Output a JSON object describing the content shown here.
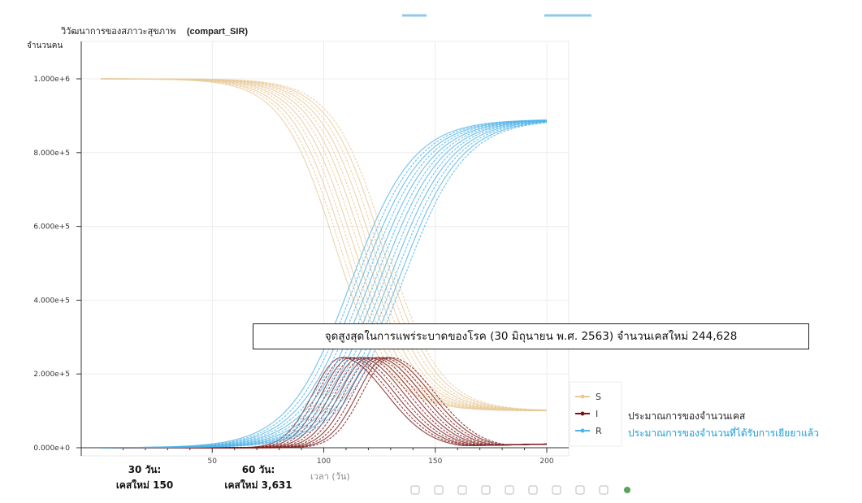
{
  "chart_data": {
    "type": "line",
    "title": "วิวัฒนาการของสภาวะสุขภาพ",
    "subtitle": "(compart_SIR)",
    "ylabel": "จำนวนคน",
    "xlabel": "เวลา (วัน)",
    "xlim": [
      0,
      210
    ],
    "ylim": [
      0,
      1000000
    ],
    "x_ticks": [
      "50",
      "100",
      "150",
      "200"
    ],
    "y_ticks": [
      "0.000e+0",
      "2.000e+5",
      "4.000e+5",
      "6.000e+5",
      "8.000e+5",
      "1.000e+6"
    ],
    "legend_position": "bottom-right",
    "grid": true,
    "series": [
      {
        "name": "S",
        "color": "#e8c99a",
        "x_start": 0,
        "x_end": 200,
        "start": 1000000,
        "end": 100000,
        "midpoint_range": [
          105,
          128
        ],
        "runs": 12
      },
      {
        "name": "I",
        "color": "#7a1414",
        "x_start": 0,
        "x_end": 200,
        "peak": 244628,
        "peak_x_range": [
          108,
          130
        ],
        "end": 10000,
        "runs": 12
      },
      {
        "name": "R",
        "color": "#4fb3e8",
        "x_start": 0,
        "x_end": 200,
        "start": 0,
        "end": 890000,
        "midpoint_range": [
          112,
          135
        ],
        "runs": 12
      }
    ]
  },
  "annotations": {
    "peak": "จุดสูงสุดในการแพร่ระบาดของโรค (30 มิถุนายน พ.ศ. 2563) จำนวนเคสใหม่ 244,628",
    "day30": {
      "line1": "30 วัน:",
      "line2": "เคสใหม่ 150"
    },
    "day60": {
      "line1": "60 วัน:",
      "line2": "เคสใหม่ 3,631"
    },
    "legend_desc_s": "ประมาณการของจำนวนเคส",
    "legend_desc_r": "ประมาณการของจำนวนที่ได้รับการเยียยาแล้ว"
  }
}
